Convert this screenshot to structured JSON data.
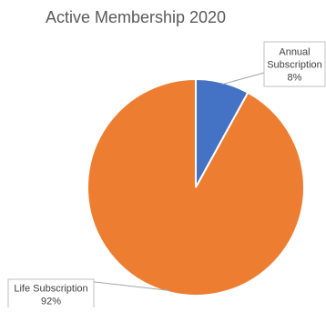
{
  "chart_data": {
    "type": "pie",
    "title": "Active Membership 2020",
    "categories": [
      "Annual Subscription",
      "Life Subscription"
    ],
    "values": [
      8,
      92
    ],
    "colors": [
      "#4472C4",
      "#ED7D31"
    ],
    "data_labels": [
      {
        "lines": [
          "Annual",
          "Subscription",
          "8%"
        ]
      },
      {
        "lines": [
          "Life Subscription",
          "92%"
        ]
      }
    ],
    "legend": "none"
  }
}
